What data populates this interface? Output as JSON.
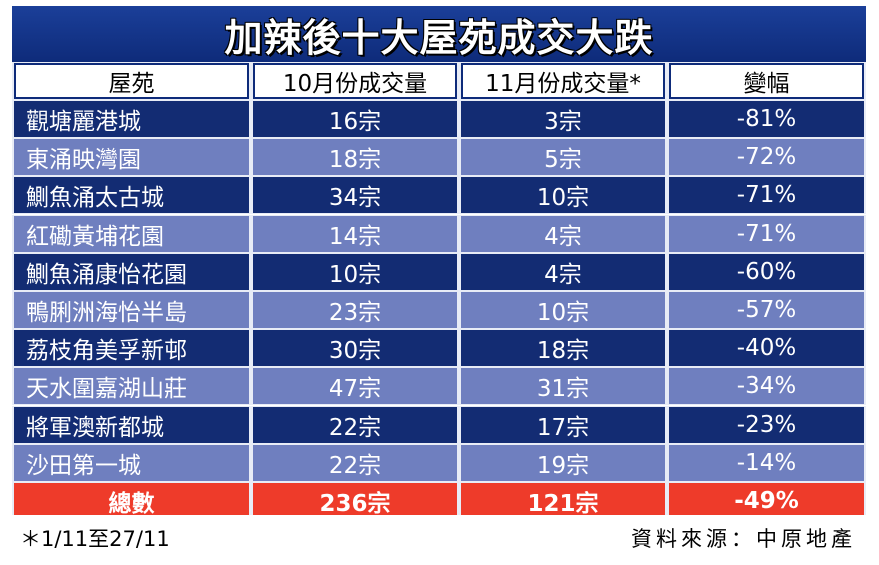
{
  "chart_data": {
    "type": "table",
    "title": "加辣後十大屋苑成交大跌",
    "columns": [
      "屋苑",
      "10月份成交量",
      "11月份成交量*",
      "變幅"
    ],
    "rows": [
      [
        "觀塘麗港城",
        "16宗",
        "3宗",
        "-81%"
      ],
      [
        "東涌映灣園",
        "18宗",
        "5宗",
        "-72%"
      ],
      [
        "鰂魚涌太古城",
        "34宗",
        "10宗",
        "-71%"
      ],
      [
        "紅磡黃埔花園",
        "14宗",
        "4宗",
        "-71%"
      ],
      [
        "鰂魚涌康怡花園",
        "10宗",
        "4宗",
        "-60%"
      ],
      [
        "鴨脷洲海怡半島",
        "23宗",
        "10宗",
        "-57%"
      ],
      [
        "荔枝角美孚新邨",
        "30宗",
        "18宗",
        "-40%"
      ],
      [
        "天水圍嘉湖山莊",
        "47宗",
        "31宗",
        "-34%"
      ],
      [
        "將軍澳新都城",
        "22宗",
        "17宗",
        "-23%"
      ],
      [
        "沙田第一城",
        "22宗",
        "19宗",
        "-14%"
      ]
    ],
    "total": [
      "總數",
      "236宗",
      "121宗",
      "-49%"
    ],
    "note": "＊1/11至27/11",
    "source": "資料來源：中原地產"
  },
  "colors": {
    "title_bg": "#0e2b7a",
    "row_dark": "#132c73",
    "row_light": "#6f7fbf",
    "total_bg": "#ee3b2a"
  }
}
